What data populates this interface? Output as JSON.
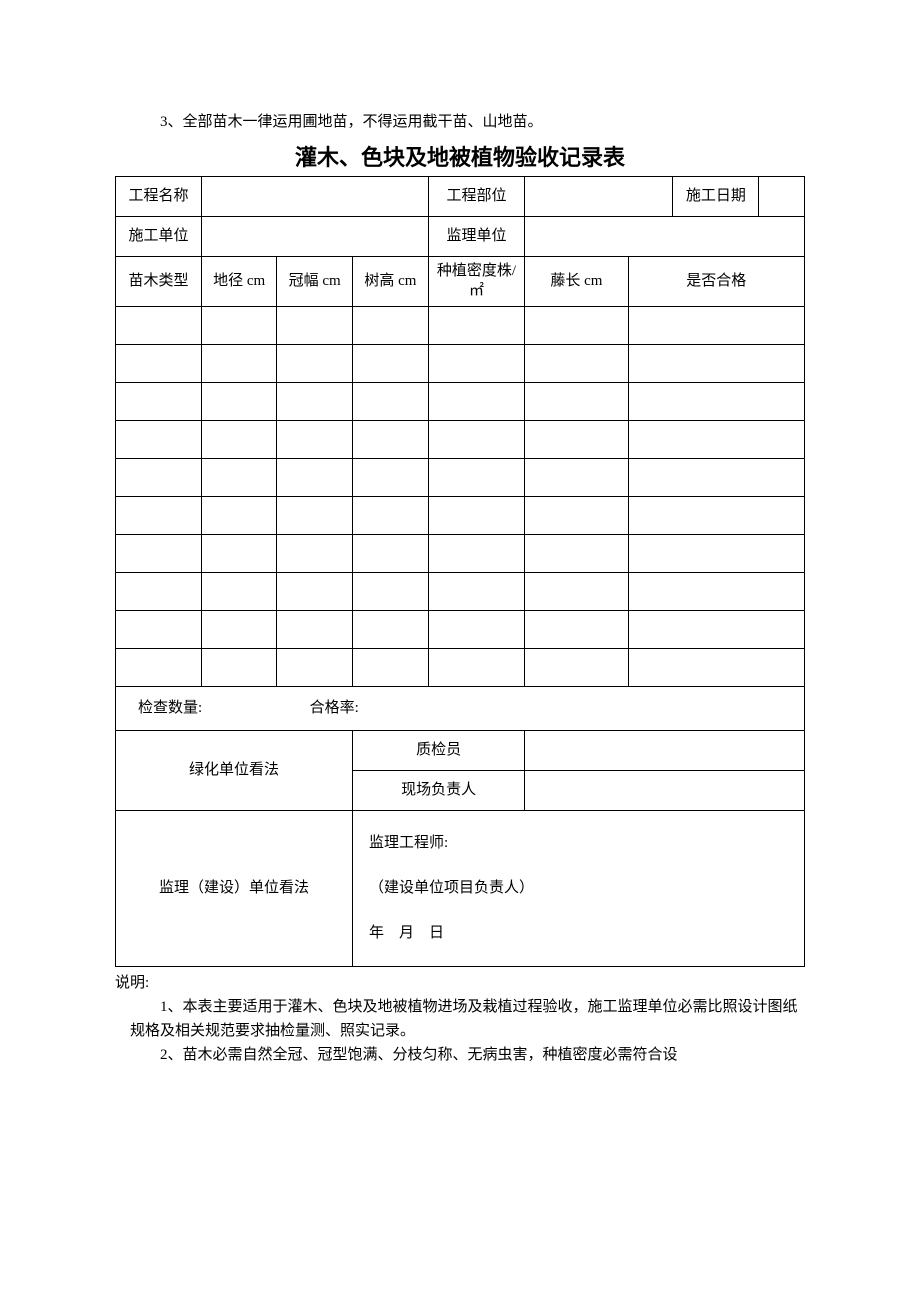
{
  "preText": "3、全部苗木一律运用圃地苗，不得运用截干苗、山地苗。",
  "title": "灌木、色块及地被植物验收记录表",
  "header": {
    "projectNameLabel": "工程名称",
    "projectPartLabel": "工程部位",
    "constructionDateLabel": "施工日期",
    "constructionUnitLabel": "施工单位",
    "supervisionUnitLabel": "监理单位"
  },
  "columns": {
    "seedlingType": "苗木类型",
    "groundDiameter": "地径 cm",
    "crownWidth": "冠幅 cm",
    "treeHeight": "树高 cm",
    "plantingDensity": "种植密度株/㎡",
    "vineLength": "藤长 cm",
    "qualified": "是否合格"
  },
  "dataRowCount": 10,
  "summary": {
    "checkQtyLabel": "检查数量:",
    "passRateLabel": "合格率:"
  },
  "opinions": {
    "greeningUnit": "绿化单位看法",
    "qc": "质检员",
    "siteManager": "现场负责人",
    "supervisionConstruction": "监理（建设）单位看法",
    "supervisorEngineer": "监理工程师:",
    "projectManager": "（建设单位项目负责人）",
    "dateFormat": "年 月 日"
  },
  "notes": {
    "head": "说明:",
    "items": [
      "1、本表主要适用于灌木、色块及地被植物进场及栽植过程验收，施工监理单位必需比照设计图纸规格及相关规范要求抽检量测、照实记录。",
      "2、苗木必需自然全冠、冠型饱满、分枝匀称、无病虫害，种植密度必需符合设"
    ]
  },
  "colors": {
    "border": "#000000",
    "text": "#000000",
    "bg": "#ffffff"
  }
}
